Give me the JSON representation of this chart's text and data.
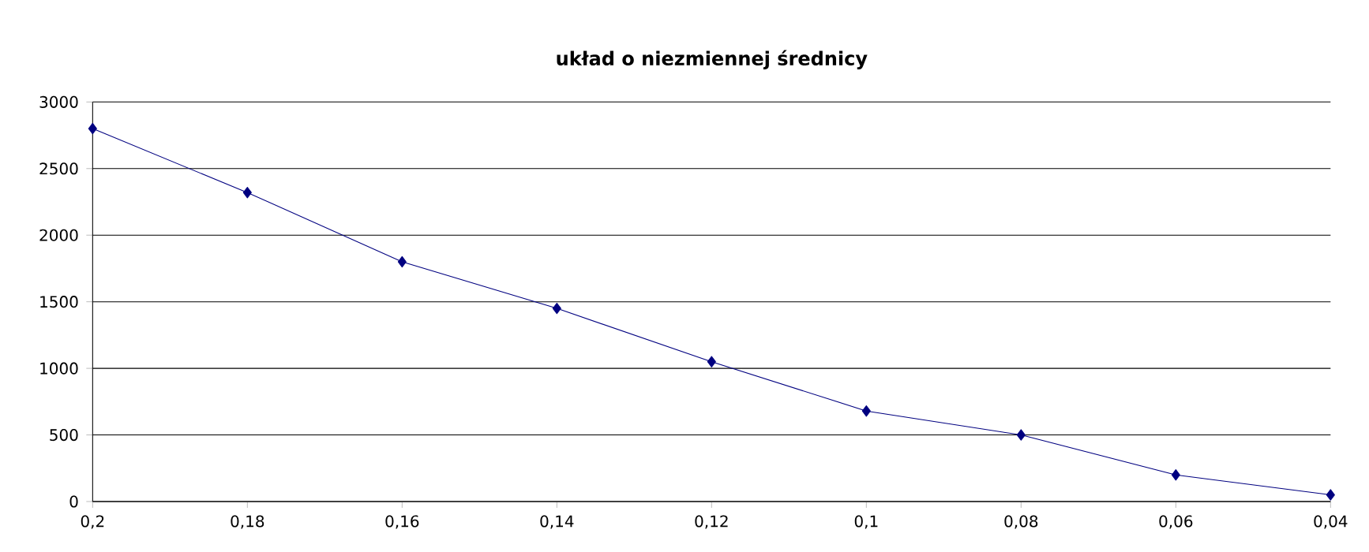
{
  "chart_data": {
    "type": "line",
    "title": "układ o niezmiennej średnicy",
    "categories": [
      "0,2",
      "0,18",
      "0,16",
      "0,14",
      "0,12",
      "0,1",
      "0,08",
      "0,06",
      "0,04"
    ],
    "series": [
      {
        "color": "#000080",
        "values": [
          2800,
          2320,
          1800,
          1450,
          1050,
          680,
          500,
          200,
          50
        ]
      }
    ],
    "ylim": [
      0,
      3000
    ],
    "yticks": [
      0,
      500,
      1000,
      1500,
      2000,
      2500,
      3000
    ],
    "grid": "y",
    "marker": "diamond",
    "line_style": "solid"
  }
}
